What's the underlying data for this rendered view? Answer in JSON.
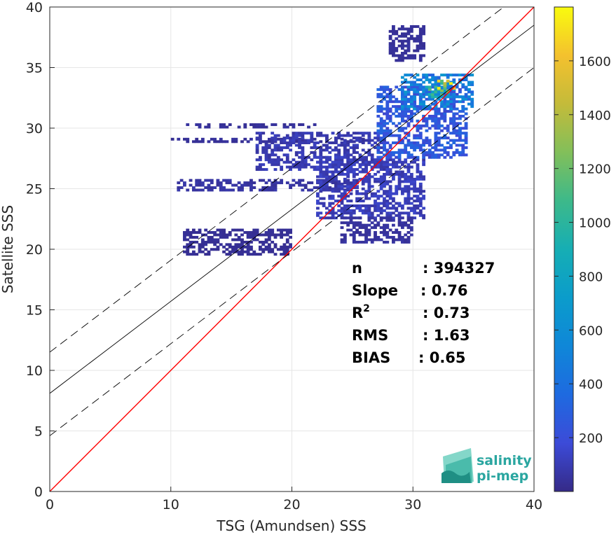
{
  "chart_data": {
    "type": "heatmap",
    "title": "",
    "xlabel": "TSG (Amundsen) SSS",
    "ylabel": "Satellite SSS",
    "xlim": [
      0,
      40
    ],
    "ylim": [
      0,
      40
    ],
    "x_ticks": [
      0,
      10,
      20,
      30,
      40
    ],
    "y_ticks": [
      0,
      5,
      10,
      15,
      20,
      25,
      30,
      35,
      40
    ],
    "grid": true,
    "colorbar": {
      "colormap": "parula",
      "range": [
        0,
        1800
      ],
      "ticks": [
        200,
        400,
        600,
        800,
        1000,
        1200,
        1400,
        1600
      ]
    },
    "lines": [
      {
        "role": "1:1 line",
        "slope": 1.0,
        "intercept": 0.0,
        "color": "#ff0000",
        "style": "solid"
      },
      {
        "role": "regression fit",
        "slope": 0.76,
        "intercept": 8.1,
        "color": "#000000",
        "style": "solid"
      },
      {
        "role": "fit + spread",
        "slope": 0.76,
        "intercept": 11.5,
        "color": "#000000",
        "style": "dashed"
      },
      {
        "role": "fit - spread",
        "slope": 0.76,
        "intercept": 4.6,
        "color": "#000000",
        "style": "dashed"
      }
    ],
    "density_regions": [
      {
        "x_range": [
          10.5,
          25.5
        ],
        "y_range": [
          24.8,
          25.6
        ],
        "level": 60
      },
      {
        "x_range": [
          11,
          22
        ],
        "y_range": [
          30.0,
          30.4
        ],
        "level": 40
      },
      {
        "x_range": [
          10,
          26
        ],
        "y_range": [
          28.8,
          29.2
        ],
        "level": 40
      },
      {
        "x_range": [
          17,
          28
        ],
        "y_range": [
          26.5,
          29.5
        ],
        "level": 90
      },
      {
        "x_range": [
          22,
          31
        ],
        "y_range": [
          22.5,
          27.5
        ],
        "level": 110
      },
      {
        "x_range": [
          11,
          20
        ],
        "y_range": [
          19.5,
          21.5
        ],
        "level": 30
      },
      {
        "x_range": [
          27,
          34.5
        ],
        "y_range": [
          27.5,
          33.5
        ],
        "level": 250
      },
      {
        "x_range": [
          29,
          35
        ],
        "y_range": [
          31.5,
          34.5
        ],
        "level": 500
      },
      {
        "x_range": [
          31,
          33
        ],
        "y_range": [
          32.5,
          33.5
        ],
        "level": 900
      },
      {
        "x_range": [
          32,
          33.5
        ],
        "y_range": [
          33.0,
          34.0
        ],
        "level": 1300
      },
      {
        "x_range": [
          28,
          31
        ],
        "y_range": [
          35.5,
          38.5
        ],
        "level": 40
      },
      {
        "x_range": [
          24,
          30
        ],
        "y_range": [
          20.5,
          22.5
        ],
        "level": 50
      }
    ],
    "stats": [
      {
        "label": "n",
        "value": ": 394327"
      },
      {
        "label": "Slope",
        "value": ": 0.76"
      },
      {
        "label": "R",
        "superscript": "2",
        "value": ": 0.73"
      },
      {
        "label": "RMS",
        "value": ": 1.63"
      },
      {
        "label": "BIAS",
        "value": ": 0.65"
      }
    ]
  },
  "logo": {
    "line1": "salinity",
    "line2": "pi-mep",
    "color": "#2aa6a0"
  }
}
